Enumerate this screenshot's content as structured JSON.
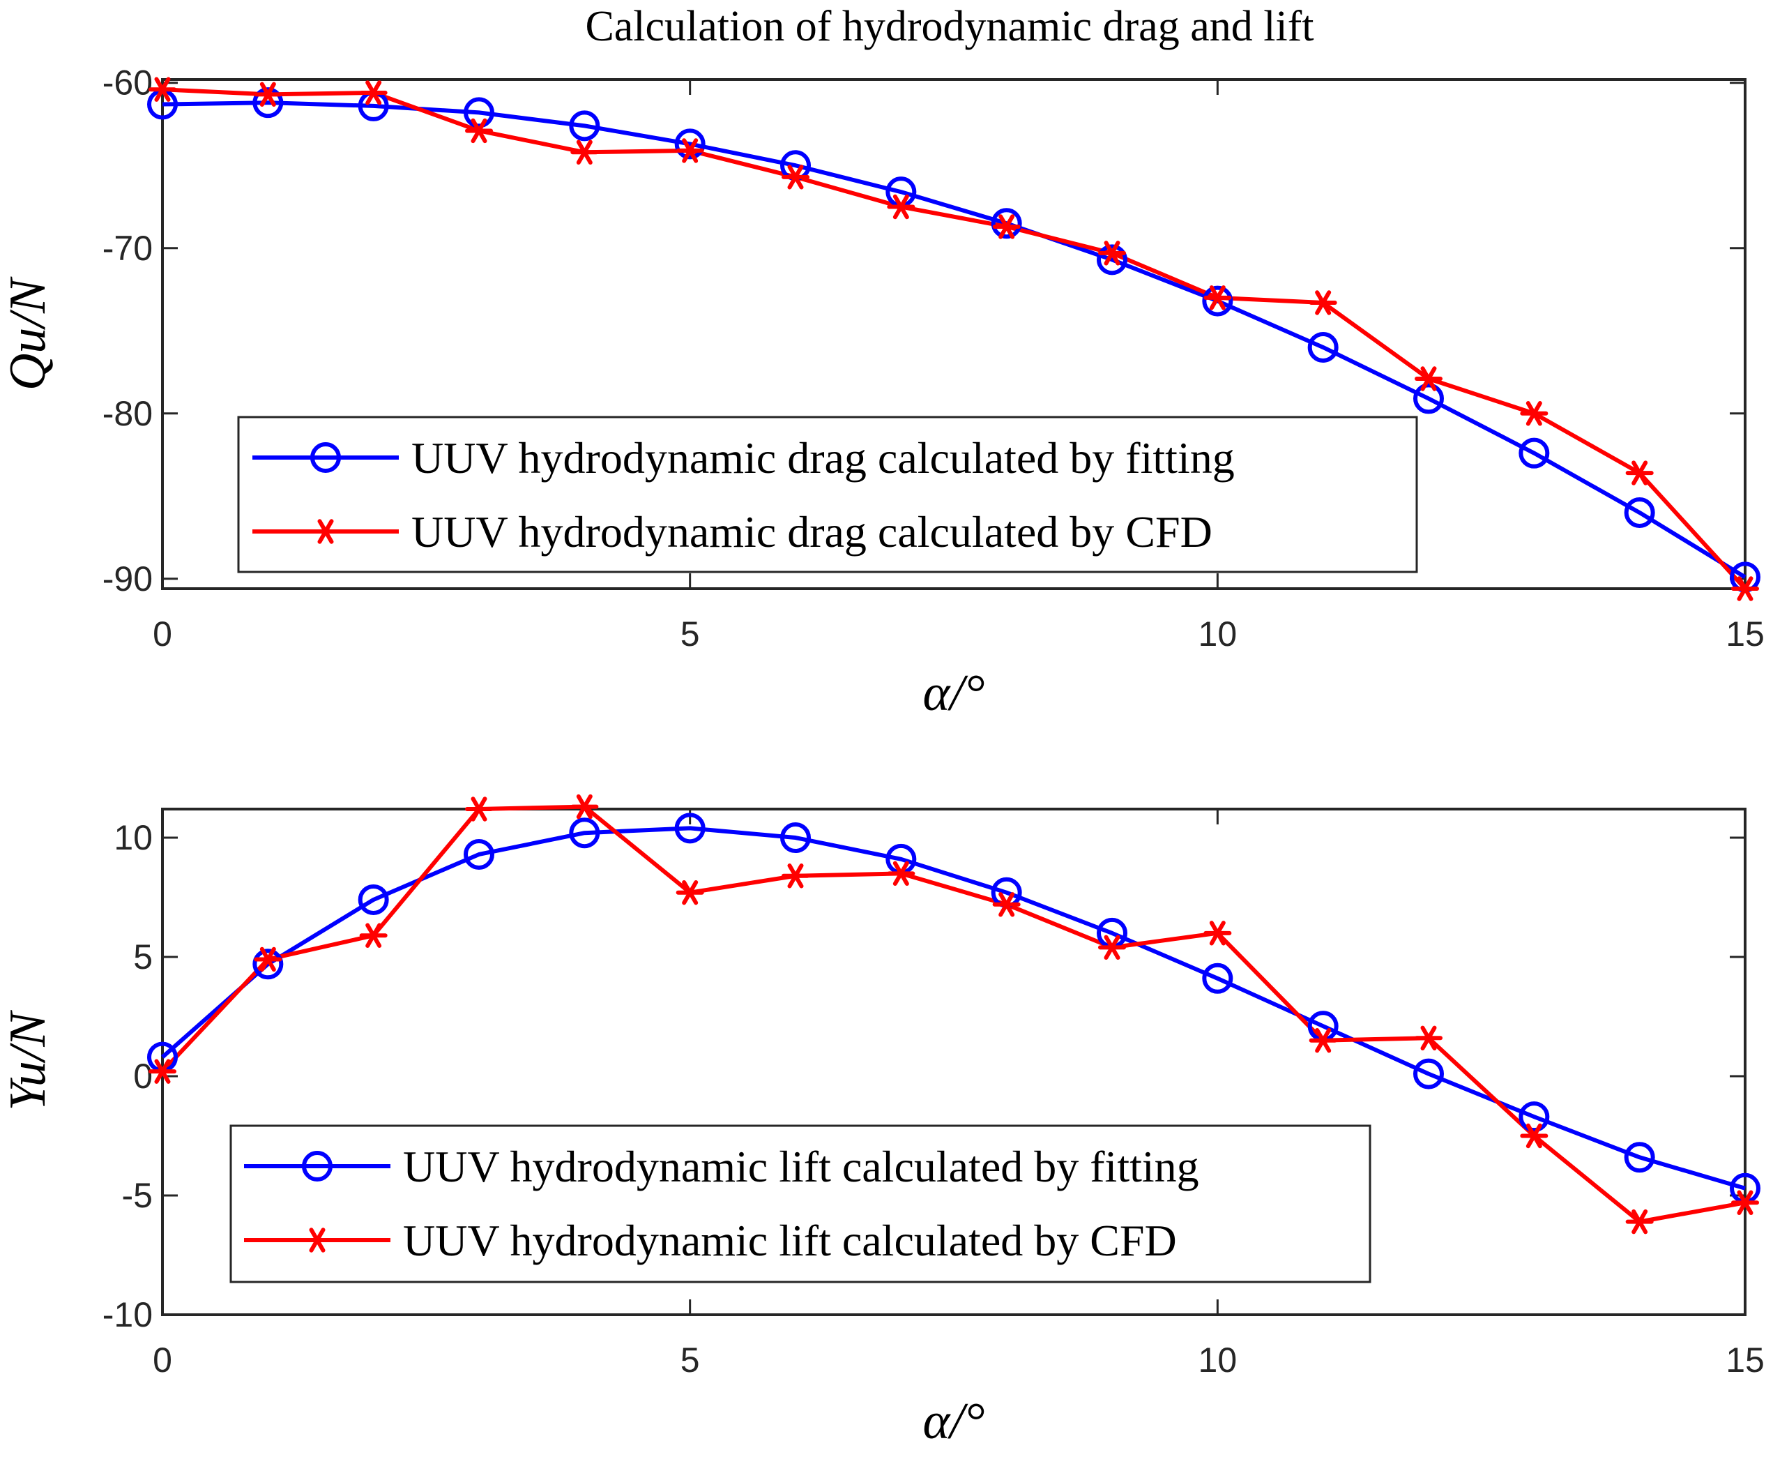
{
  "chart_data": [
    {
      "type": "line",
      "title": "Calculation of hydrodynamic drag and lift",
      "xlabel": "α/°",
      "ylabel": "Qu/N",
      "xlim": [
        0,
        15
      ],
      "ylim": [
        -90.6,
        -59.8
      ],
      "xticks": [
        0,
        5,
        10,
        15
      ],
      "yticks": [
        -60,
        -70,
        -80,
        -90
      ],
      "x": [
        0,
        1,
        2,
        3,
        4,
        5,
        6,
        7,
        8,
        9,
        10,
        11,
        12,
        13,
        14,
        15
      ],
      "series": [
        {
          "name": "UUV hydrodynamic drag calculated by fitting",
          "color": "#0000ff",
          "marker": "circle",
          "values": [
            -61.3,
            -61.2,
            -61.4,
            -61.8,
            -62.6,
            -63.7,
            -65.0,
            -66.6,
            -68.5,
            -70.7,
            -73.2,
            -76.0,
            -79.1,
            -82.4,
            -86.0,
            -89.9
          ]
        },
        {
          "name": "UUV hydrodynamic drag calculated by CFD",
          "color": "#ff0000",
          "marker": "asterisk",
          "values": [
            -60.4,
            -60.7,
            -60.6,
            -62.9,
            -64.2,
            -64.1,
            -65.7,
            -67.5,
            -68.7,
            -70.3,
            -73.0,
            -73.3,
            -77.9,
            -80.0,
            -83.6,
            -90.6
          ]
        }
      ],
      "legend": "bottom-left"
    },
    {
      "type": "line",
      "title": "",
      "xlabel": "α/°",
      "ylabel": "Yu/N",
      "xlim": [
        0,
        15
      ],
      "ylim": [
        -10,
        11.2
      ],
      "xticks": [
        0,
        5,
        10,
        15
      ],
      "yticks": [
        10,
        5,
        0,
        -5,
        -10
      ],
      "x": [
        0,
        1,
        2,
        3,
        4,
        5,
        6,
        7,
        8,
        9,
        10,
        11,
        12,
        13,
        14,
        15
      ],
      "series": [
        {
          "name": "UUV hydrodynamic lift calculated by fitting",
          "color": "#0000ff",
          "marker": "circle",
          "values": [
            0.8,
            4.7,
            7.4,
            9.3,
            10.2,
            10.4,
            10.0,
            9.1,
            7.7,
            6.0,
            4.1,
            2.1,
            0.1,
            -1.7,
            -3.4,
            -4.7
          ]
        },
        {
          "name": "UUV hydrodynamic lift calculated by CFD",
          "color": "#ff0000",
          "marker": "asterisk",
          "values": [
            0.2,
            4.9,
            5.9,
            11.2,
            11.3,
            7.7,
            8.4,
            8.5,
            7.2,
            5.4,
            6.0,
            1.5,
            1.6,
            -2.5,
            -6.1,
            -5.3
          ]
        }
      ],
      "legend": "bottom-left"
    }
  ]
}
